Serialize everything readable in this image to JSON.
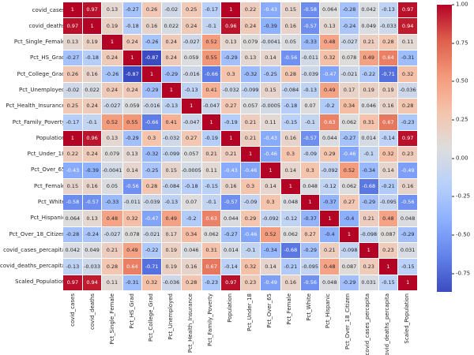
{
  "chart_data": {
    "type": "heatmap",
    "subtype": "correlation-matrix",
    "title": "",
    "annotated": true,
    "grid": false,
    "legend_position": "right-colorbar",
    "variables": [
      "covid_cases",
      "covid_deaths",
      "Pct_Single_Female",
      "Pct_HS_Grad",
      "Pct_College_Grad",
      "Pct_Unemployed",
      "Pct_Health_Insurance",
      "Pct_Family_Poverty",
      "Population",
      "Pct_Under_18",
      "Pct_Over_65",
      "Pct_Female",
      "Pct_White",
      "Pct_Hispanic",
      "Pct_Over_18_Citizen",
      "covid_cases_percapita",
      "covid_deaths_percapita",
      "Scaled_Population"
    ],
    "matrix": [
      [
        1,
        0.97,
        0.13,
        -0.27,
        0.26,
        -0.02,
        0.25,
        -0.17,
        1,
        0.22,
        -0.43,
        0.15,
        -0.58,
        0.064,
        -0.28,
        0.042,
        -0.13,
        0.97
      ],
      [
        0.97,
        1,
        0.19,
        -0.18,
        0.16,
        0.022,
        0.24,
        -0.1,
        0.96,
        0.24,
        -0.39,
        0.16,
        -0.57,
        0.13,
        -0.24,
        0.049,
        -0.033,
        0.94
      ],
      [
        0.13,
        0.19,
        1,
        0.24,
        -0.26,
        0.24,
        -0.027,
        0.52,
        0.13,
        0.079,
        -0.0041,
        0.05,
        -0.33,
        0.48,
        -0.027,
        0.21,
        0.28,
        0.11
      ],
      [
        -0.27,
        -0.18,
        0.24,
        1,
        -0.87,
        0.24,
        0.059,
        0.55,
        -0.29,
        0.13,
        0.14,
        -0.56,
        -0.011,
        0.32,
        0.078,
        0.49,
        0.64,
        -0.31
      ],
      [
        0.26,
        0.16,
        -0.26,
        -0.87,
        1,
        -0.29,
        -0.016,
        -0.66,
        0.3,
        -0.32,
        -0.25,
        0.28,
        -0.039,
        -0.47,
        -0.021,
        -0.22,
        -0.71,
        0.32
      ],
      [
        -0.02,
        0.022,
        0.24,
        0.24,
        -0.29,
        1,
        -0.13,
        0.41,
        -0.032,
        -0.099,
        0.15,
        -0.084,
        -0.13,
        0.49,
        0.17,
        0.19,
        0.19,
        -0.036
      ],
      [
        0.25,
        0.24,
        -0.027,
        0.059,
        -0.016,
        -0.13,
        1,
        -0.047,
        0.27,
        0.057,
        -0.0005,
        -0.18,
        0.07,
        -0.2,
        0.34,
        0.046,
        0.16,
        0.28
      ],
      [
        -0.17,
        -0.1,
        0.52,
        0.55,
        -0.66,
        0.41,
        -0.047,
        1,
        -0.19,
        0.21,
        0.11,
        -0.15,
        -0.1,
        0.63,
        0.062,
        0.31,
        0.67,
        -0.23
      ],
      [
        1,
        0.96,
        0.13,
        -0.29,
        0.3,
        -0.032,
        0.27,
        -0.19,
        1,
        0.21,
        -0.43,
        0.16,
        -0.57,
        0.044,
        -0.27,
        0.014,
        -0.14,
        0.97
      ],
      [
        0.22,
        0.24,
        0.079,
        0.13,
        -0.32,
        -0.099,
        0.057,
        0.21,
        0.21,
        1,
        -0.46,
        0.3,
        -0.09,
        0.29,
        -0.46,
        -0.1,
        0.32,
        0.23
      ],
      [
        -0.43,
        -0.39,
        -0.0041,
        0.14,
        -0.25,
        0.15,
        -0.0005,
        0.11,
        -0.43,
        -0.46,
        1,
        0.14,
        0.3,
        -0.092,
        0.52,
        -0.34,
        0.14,
        -0.49
      ],
      [
        0.15,
        0.16,
        0.05,
        -0.56,
        0.28,
        -0.084,
        -0.18,
        -0.15,
        0.16,
        0.3,
        0.14,
        1,
        0.048,
        -0.12,
        0.062,
        -0.68,
        -0.21,
        0.16
      ],
      [
        -0.58,
        -0.57,
        -0.33,
        -0.011,
        -0.039,
        -0.13,
        0.07,
        -0.1,
        -0.57,
        -0.09,
        0.3,
        0.048,
        1,
        -0.37,
        0.27,
        -0.29,
        -0.095,
        -0.56
      ],
      [
        0.064,
        0.13,
        0.48,
        0.32,
        -0.47,
        0.49,
        -0.2,
        0.63,
        0.044,
        0.29,
        -0.092,
        -0.12,
        -0.37,
        1,
        -0.4,
        0.21,
        0.48,
        0.048
      ],
      [
        -0.28,
        -0.24,
        -0.027,
        0.078,
        -0.021,
        0.17,
        0.34,
        0.062,
        -0.27,
        -0.46,
        0.52,
        0.062,
        0.27,
        -0.4,
        1,
        -0.098,
        0.087,
        -0.29
      ],
      [
        0.042,
        0.049,
        0.21,
        0.49,
        -0.22,
        0.19,
        0.046,
        0.31,
        0.014,
        -0.1,
        -0.34,
        -0.68,
        -0.29,
        0.21,
        -0.098,
        1,
        0.23,
        0.031
      ],
      [
        -0.13,
        -0.033,
        0.28,
        0.64,
        -0.71,
        0.19,
        0.16,
        0.67,
        -0.14,
        0.32,
        0.14,
        -0.21,
        -0.095,
        0.48,
        0.087,
        0.23,
        1,
        -0.15
      ],
      [
        0.97,
        0.94,
        0.11,
        -0.31,
        0.32,
        -0.036,
        0.28,
        -0.23,
        0.97,
        0.23,
        -0.49,
        0.16,
        -0.56,
        0.048,
        -0.29,
        0.031,
        -0.15,
        1
      ]
    ],
    "vmin": -0.87,
    "vmax": 1.0,
    "colormap": {
      "name": "coolwarm",
      "stops": [
        [
          0.0,
          "#3b4cc0"
        ],
        [
          0.125,
          "#6282ea"
        ],
        [
          0.25,
          "#8db0fe"
        ],
        [
          0.375,
          "#b8d0f9"
        ],
        [
          0.5,
          "#dddddd"
        ],
        [
          0.625,
          "#f5c4ad"
        ],
        [
          0.75,
          "#f49a7b"
        ],
        [
          0.875,
          "#de604d"
        ],
        [
          1.0,
          "#b40426"
        ]
      ]
    },
    "colorbar": {
      "tick_labels": [
        "1.00",
        "0.75",
        "0.50",
        "0.25",
        "0.00",
        "-0.25",
        "-0.50",
        "-0.75"
      ],
      "tick_values": [
        1.0,
        0.75,
        0.5,
        0.25,
        0.0,
        -0.25,
        -0.5,
        -0.75
      ]
    },
    "colors": {
      "background": "#ffffff",
      "cell_border": "#ffffff",
      "annotation_dark": "#262626",
      "annotation_light": "#ffffff",
      "axis_label": "#262626"
    }
  }
}
